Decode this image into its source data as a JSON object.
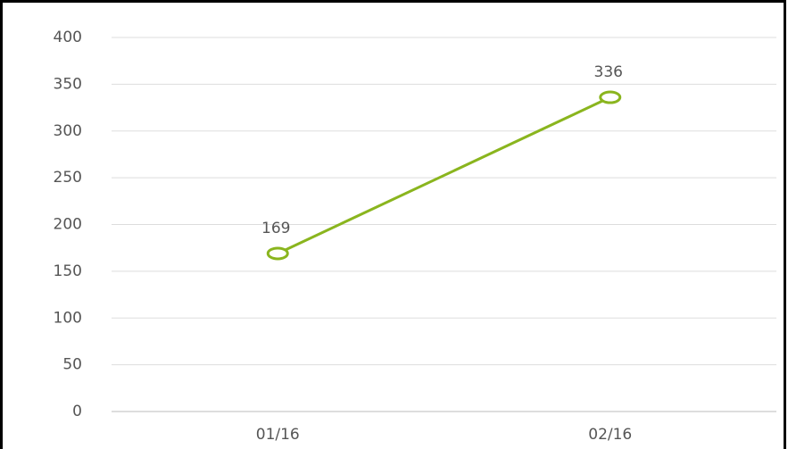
{
  "chart_data": {
    "type": "line",
    "categories": [
      "01/16",
      "02/16"
    ],
    "series": [
      {
        "name": "series",
        "color": "#8ab51e",
        "values": [
          169,
          336
        ]
      }
    ],
    "ylim": [
      0,
      400
    ],
    "yticks": [
      0,
      50,
      100,
      150,
      200,
      250,
      300,
      350,
      400
    ],
    "grid": true
  }
}
